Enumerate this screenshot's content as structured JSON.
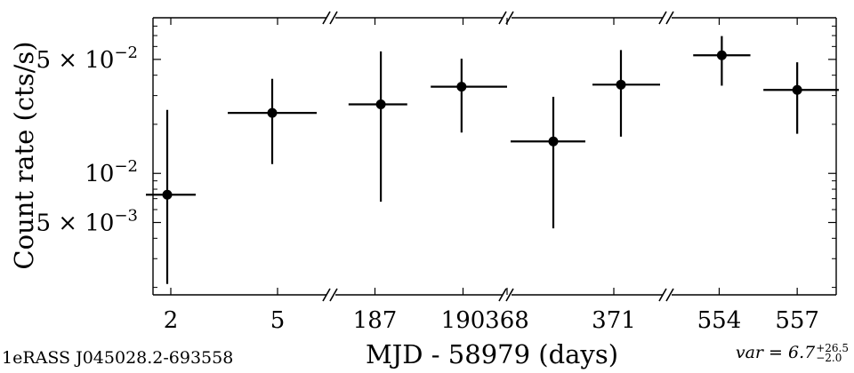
{
  "chart_data": {
    "type": "scatter",
    "xlabel": "MJD - 58979 (days)",
    "ylabel": "Count rate (cts/s)",
    "yscale": "log",
    "ylim": [
      0.0018,
      0.09
    ],
    "grid": false,
    "broken_x_axis": true,
    "segments": [
      {
        "xlim": [
          1.5,
          6.5
        ],
        "ticks": [
          2,
          5
        ],
        "tick_labels": [
          "2",
          "5"
        ]
      },
      {
        "xlim": [
          185.5,
          191.5
        ],
        "ticks": [
          187,
          190
        ],
        "tick_labels": [
          "187",
          "190"
        ]
      },
      {
        "xlim": [
          368,
          372.5
        ],
        "ticks": [
          368,
          371
        ],
        "tick_labels": [
          "368",
          "371"
        ]
      },
      {
        "xlim": [
          552,
          558.5
        ],
        "ticks": [
          554,
          557
        ],
        "tick_labels": [
          "554",
          "557"
        ]
      }
    ],
    "y_ticks": [
      {
        "value": 0.005,
        "mantissa": "5 ×",
        "exponent": "−3"
      },
      {
        "value": 0.01,
        "mantissa": "",
        "exponent": "−2"
      },
      {
        "value": 0.05,
        "mantissa": "5 ×",
        "exponent": "−2"
      }
    ],
    "series": [
      {
        "points": [
          {
            "segment": 0,
            "x": 1.9,
            "x_lo": 1.3,
            "x_hi": 2.7,
            "y": 0.0074,
            "y_lo": 0.0021,
            "y_hi": 0.0245
          },
          {
            "segment": 0,
            "x": 4.85,
            "x_lo": 3.6,
            "x_hi": 6.1,
            "y": 0.0235,
            "y_lo": 0.0114,
            "y_hi": 0.038
          },
          {
            "segment": 1,
            "x": 187.2,
            "x_lo": 186.1,
            "x_hi": 188.1,
            "y": 0.0265,
            "y_lo": 0.0067,
            "y_hi": 0.056
          },
          {
            "segment": 1,
            "x": 189.95,
            "x_lo": 188.9,
            "x_hi": 191.5,
            "y": 0.034,
            "y_lo": 0.0178,
            "y_hi": 0.0505
          },
          {
            "segment": 2,
            "x": 369.3,
            "x_lo": 368.1,
            "x_hi": 370.2,
            "y": 0.0157,
            "y_lo": 0.0046,
            "y_hi": 0.0295
          },
          {
            "segment": 2,
            "x": 371.2,
            "x_lo": 370.4,
            "x_hi": 372.3,
            "y": 0.035,
            "y_lo": 0.0168,
            "y_hi": 0.057
          },
          {
            "segment": 3,
            "x": 554.1,
            "x_lo": 553.0,
            "x_hi": 555.2,
            "y": 0.053,
            "y_lo": 0.0345,
            "y_hi": 0.0695
          },
          {
            "segment": 3,
            "x": 557.0,
            "x_lo": 555.7,
            "x_hi": 558.6,
            "y": 0.0325,
            "y_lo": 0.0175,
            "y_hi": 0.048
          }
        ]
      }
    ]
  },
  "annotations": {
    "source_name": "1eRASS J045028.2-693558",
    "var_prefix": "var = 6.7",
    "var_plus": "+26.5",
    "var_minus": "−2.0"
  }
}
